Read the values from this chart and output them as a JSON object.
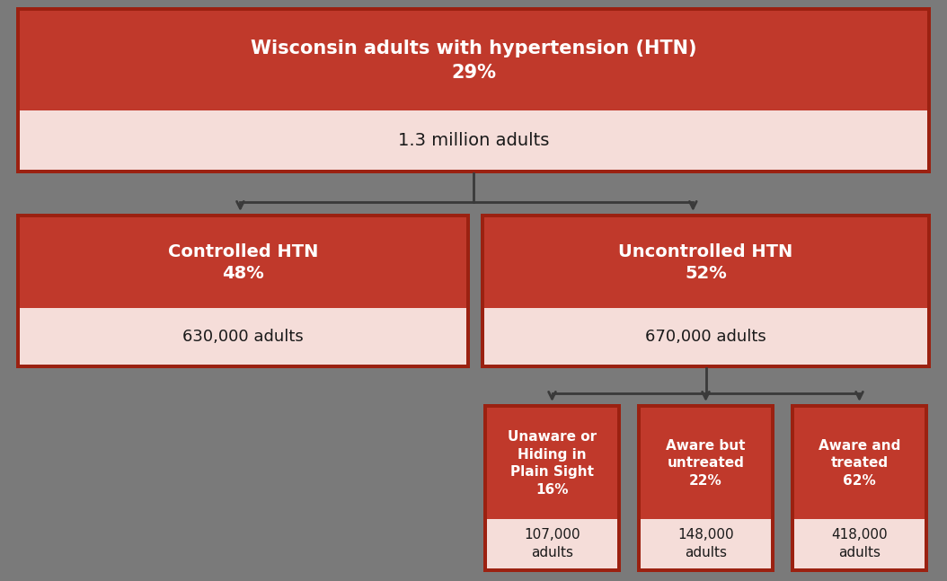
{
  "background_color": "#7a7a7a",
  "red_color": "#c0392b",
  "light_pink": "#f5ddd9",
  "border_color": "#9b2111",
  "text_white": "#ffffff",
  "text_dark": "#1a1a1a",
  "arrow_color": "#3a3a3a",
  "top_box": {
    "title_line1": "Wisconsin adults with hypertension (HTN)",
    "title_line2": "29%",
    "subtitle": "1.3 million adults"
  },
  "left_box": {
    "red_line1": "Controlled HTN",
    "red_line2": "48%",
    "pink_text": "630,000 adults"
  },
  "right_box": {
    "red_line1": "Uncontrolled HTN",
    "red_line2": "52%",
    "pink_text": "670,000 adults"
  },
  "sub_boxes": [
    {
      "red_lines": [
        "Unaware or",
        "Hiding in",
        "Plain Sight",
        "16%"
      ],
      "pink_lines": [
        "107,000",
        "adults"
      ]
    },
    {
      "red_lines": [
        "Aware but",
        "untreated",
        "22%"
      ],
      "pink_lines": [
        "148,000",
        "adults"
      ]
    },
    {
      "red_lines": [
        "Aware and",
        "treated",
        "62%"
      ],
      "pink_lines": [
        "418,000",
        "adults"
      ]
    }
  ]
}
